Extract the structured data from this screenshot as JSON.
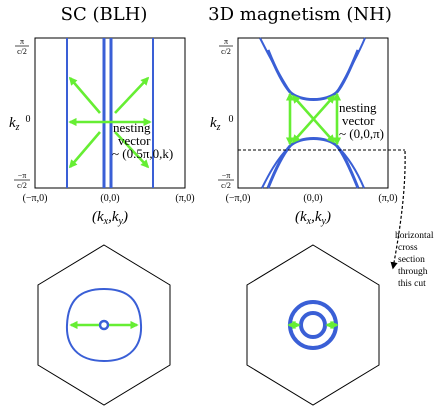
{
  "titles": {
    "left": "SC (BLH)",
    "right": "3D magnetism (NH)"
  },
  "axes": {
    "kz_label": "k",
    "kz_sub": "z",
    "pi_num": "π",
    "neg_pi_num": "−π",
    "frac_den": "c/2",
    "zero": "0",
    "x_ticks": [
      "(−π,0)",
      "(0,0)",
      "(π,0)"
    ],
    "x_label": "(kx,ky)",
    "x_label_parts": [
      "(",
      "k",
      "x",
      ",",
      "k",
      "y",
      ")"
    ]
  },
  "annotations": {
    "left_nesting": [
      "nesting",
      "vector",
      "~ (0.5π,0,k)"
    ],
    "right_nesting": [
      "nesting",
      "vector",
      "~ (0,0,π)"
    ],
    "cross_section": [
      "horizontal",
      "cross",
      "section",
      "through",
      "this cut"
    ]
  },
  "colors": {
    "fermi_surface": "#3a5fd6",
    "nesting_arrow": "#66ee33",
    "frame": "#000000"
  }
}
